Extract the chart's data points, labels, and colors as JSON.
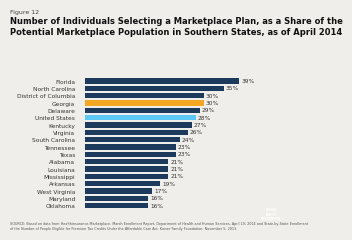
{
  "title_small": "Figure 12",
  "title": "Number of Individuals Selecting a Marketplace Plan, as a Share of the\nPotential Marketplace Population in Southern States, as of April 2014",
  "categories": [
    "Oklahoma",
    "Maryland",
    "West Virginia",
    "Arkansas",
    "Mississippi",
    "Louisiana",
    "Alabama",
    "Texas",
    "Tennessee",
    "South Carolina",
    "Virginia",
    "Kentucky",
    "United States",
    "Delaware",
    "Georgia",
    "District of Columbia",
    "North Carolina",
    "Florida"
  ],
  "values": [
    16,
    16,
    17,
    19,
    21,
    21,
    21,
    23,
    23,
    24,
    26,
    27,
    28,
    29,
    30,
    30,
    35,
    39
  ],
  "bar_colors": [
    "#1b3a5c",
    "#1b3a5c",
    "#1b3a5c",
    "#1b3a5c",
    "#1b3a5c",
    "#1b3a5c",
    "#1b3a5c",
    "#1b3a5c",
    "#1b3a5c",
    "#1b3a5c",
    "#1b3a5c",
    "#1b3a5c",
    "#5bc8f5",
    "#1b3a5c",
    "#f5a623",
    "#1b3a5c",
    "#1b3a5c",
    "#1b3a5c"
  ],
  "xlim": [
    0,
    47
  ],
  "source_text": "SOURCE: Based on data from Healthinsurance.Marketplace. March Enrollment Report, Department of Health and Human Services, April 19, 2014 and State-by-State Enrollment\nof the Number of People Eligible for Premium Tax Credits Under the Affordable Care Act, Kaiser Family Foundation, November 5, 2013.",
  "bg_color": "#f0eeeb",
  "label_fontsize": 4.2,
  "value_fontsize": 4.2,
  "title_fontsize": 6.0,
  "title_small_fontsize": 4.5,
  "source_fontsize": 2.4
}
